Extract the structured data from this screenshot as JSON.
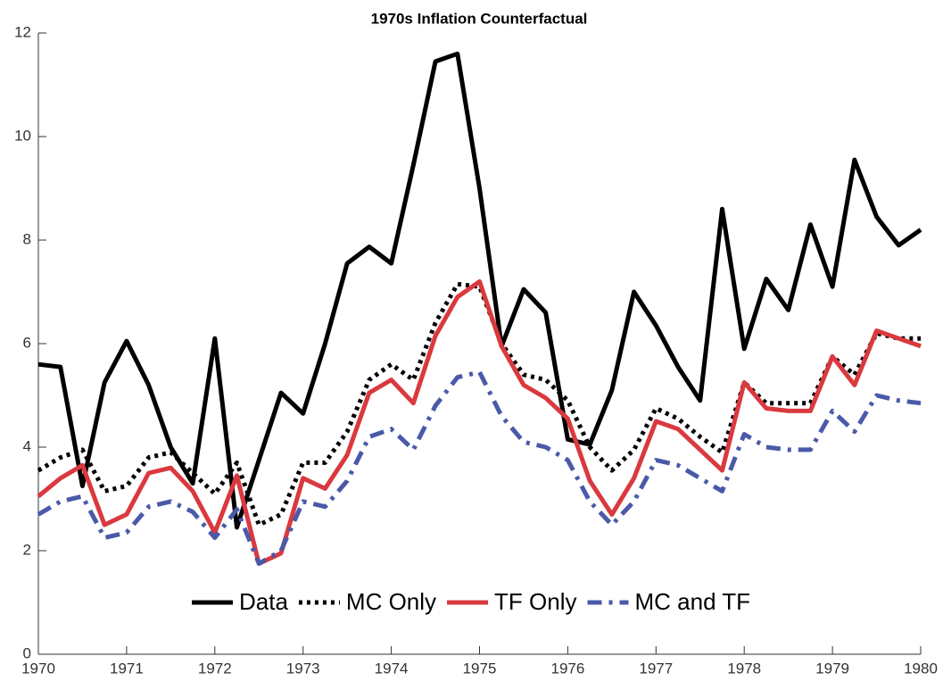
{
  "chart_data": {
    "type": "line",
    "title": "1970s Inflation Counterfactual",
    "x": [
      1970,
      1970.25,
      1970.5,
      1970.75,
      1971,
      1971.25,
      1971.5,
      1971.75,
      1972,
      1972.25,
      1972.5,
      1972.75,
      1973,
      1973.25,
      1973.5,
      1973.75,
      1974,
      1974.25,
      1974.5,
      1974.75,
      1975,
      1975.25,
      1975.5,
      1975.75,
      1976,
      1976.25,
      1976.5,
      1976.75,
      1977,
      1977.25,
      1977.5,
      1977.75,
      1978,
      1978.25,
      1978.5,
      1978.75,
      1979,
      1979.25,
      1979.5,
      1979.75,
      1980
    ],
    "series": [
      {
        "name": "Data",
        "color": "#000000",
        "linestyle": "solid",
        "values": [
          5.6,
          5.55,
          3.25,
          5.25,
          6.05,
          5.2,
          4.0,
          3.3,
          6.1,
          2.45,
          3.75,
          5.05,
          4.65,
          6.0,
          7.55,
          7.87,
          7.55,
          9.45,
          11.45,
          11.6,
          9.0,
          5.95,
          7.05,
          6.6,
          4.15,
          4.05,
          5.1,
          7.0,
          6.35,
          5.55,
          4.9,
          8.6,
          5.9,
          7.25,
          6.65,
          8.3,
          7.1,
          9.55,
          8.45,
          7.9,
          8.2
        ]
      },
      {
        "name": "MC Only",
        "color": "#000000",
        "linestyle": "dotted",
        "values": [
          3.55,
          3.8,
          3.95,
          3.15,
          3.25,
          3.8,
          3.9,
          3.5,
          3.1,
          3.7,
          2.5,
          2.7,
          3.7,
          3.7,
          4.3,
          5.3,
          5.6,
          5.3,
          6.4,
          7.15,
          7.1,
          6.0,
          5.4,
          5.3,
          4.9,
          4.0,
          3.55,
          3.95,
          4.75,
          4.55,
          4.2,
          3.9,
          5.25,
          4.85,
          4.85,
          4.85,
          5.75,
          5.4,
          6.2,
          6.1,
          6.1
        ]
      },
      {
        "name": "TF Only",
        "color": "#d9393f",
        "linestyle": "solid",
        "values": [
          3.05,
          3.4,
          3.65,
          2.5,
          2.7,
          3.5,
          3.6,
          3.15,
          2.35,
          3.45,
          1.75,
          1.95,
          3.4,
          3.2,
          3.85,
          5.05,
          5.3,
          4.85,
          6.15,
          6.9,
          7.2,
          5.95,
          5.2,
          4.95,
          4.55,
          3.35,
          2.7,
          3.4,
          4.5,
          4.35,
          3.95,
          3.55,
          5.25,
          4.75,
          4.7,
          4.7,
          5.75,
          5.2,
          6.25,
          6.1,
          5.95
        ]
      },
      {
        "name": "MC and TF",
        "color": "#4a5aa8",
        "linestyle": "dashdot",
        "values": [
          2.7,
          2.95,
          3.05,
          2.25,
          2.35,
          2.85,
          2.95,
          2.75,
          2.25,
          2.8,
          1.75,
          2.0,
          2.95,
          2.85,
          3.35,
          4.2,
          4.35,
          3.95,
          4.8,
          5.35,
          5.45,
          4.6,
          4.1,
          4.0,
          3.75,
          2.95,
          2.5,
          2.95,
          3.75,
          3.65,
          3.4,
          3.15,
          4.25,
          4.0,
          3.95,
          3.95,
          4.7,
          4.3,
          5.0,
          4.9,
          4.85
        ]
      }
    ],
    "xlim": [
      1970,
      1980
    ],
    "xticks": [
      1970,
      1971,
      1972,
      1973,
      1974,
      1975,
      1976,
      1977,
      1978,
      1979,
      1980
    ],
    "ylim": [
      0,
      12
    ],
    "yticks": [
      0,
      2,
      4,
      6,
      8,
      10,
      12
    ],
    "grid": false,
    "legend": "bottom"
  }
}
